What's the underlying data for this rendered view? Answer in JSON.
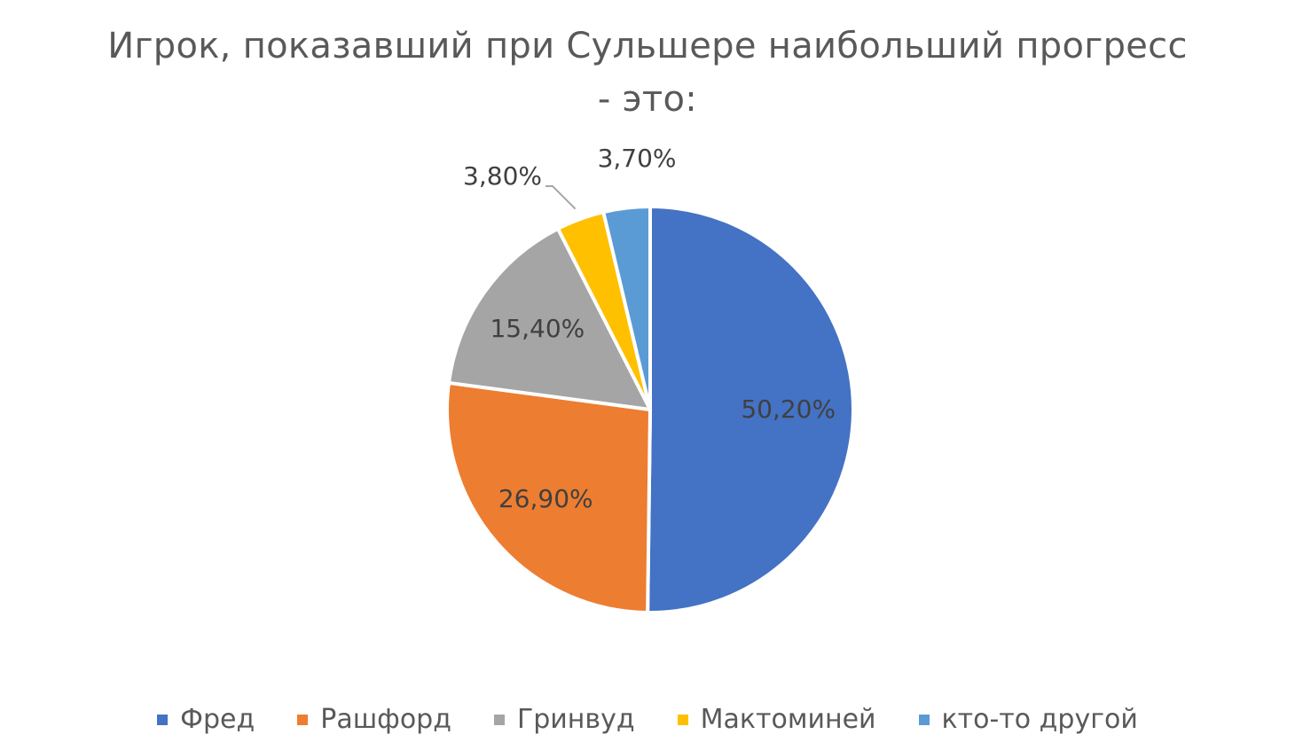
{
  "chart_data": {
    "type": "pie",
    "title": "Игрок, показавший при Сульшере наибольший прогресс - это:",
    "title_lines": [
      "Игрок, показавший при Сульшере наибольший прогресс",
      "- это:"
    ],
    "categories": [
      "Фред",
      "Рашфорд",
      "Гринвуд",
      "Мактоминей",
      "кто-то другой"
    ],
    "values": [
      50.2,
      26.9,
      15.4,
      3.8,
      3.7
    ],
    "value_labels": [
      "50,20%",
      "26,90%",
      "15,40%",
      "3,80%",
      "3,70%"
    ],
    "colors": [
      "#4472C4",
      "#ED7D31",
      "#A5A5A5",
      "#FFC000",
      "#5B9BD5"
    ],
    "legend_position": "bottom",
    "start": "12 o'clock",
    "direction": "clockwise"
  }
}
